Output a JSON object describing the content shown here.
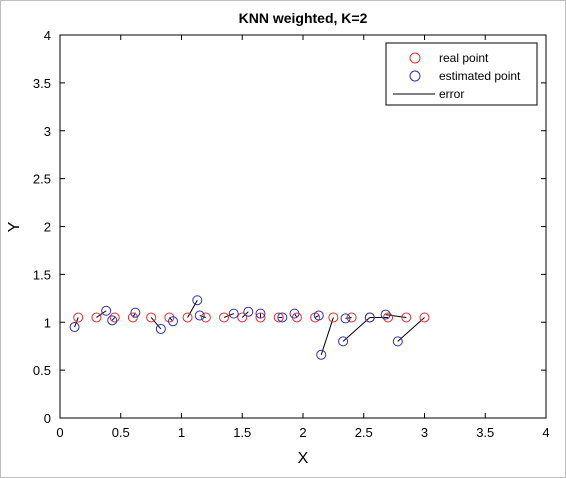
{
  "chart_data": {
    "type": "scatter",
    "title": "KNN weighted, K=2",
    "xlabel": "X",
    "ylabel": "Y",
    "xlim": [
      0,
      4
    ],
    "ylim": [
      0,
      4
    ],
    "xticks": [
      0,
      0.5,
      1,
      1.5,
      2,
      2.5,
      3,
      3.5,
      4
    ],
    "xtick_labels": [
      "0",
      "0.5",
      "1",
      "1.5",
      "2",
      "2.5",
      "3",
      "3.5",
      "4"
    ],
    "yticks": [
      0,
      0.5,
      1,
      1.5,
      2,
      2.5,
      3,
      3.5,
      4
    ],
    "ytick_labels": [
      "0",
      "0.5",
      "1",
      "1.5",
      "2",
      "2.5",
      "3",
      "3.5",
      "4"
    ],
    "grid": false,
    "legend_position": "top-right",
    "legend": [
      {
        "label": "real point",
        "marker": "circle",
        "color": "#e03030"
      },
      {
        "label": "estimated point",
        "marker": "circle",
        "color": "#3030b0"
      },
      {
        "label": "error",
        "marker": "line",
        "color": "#000000"
      }
    ],
    "series": [
      {
        "name": "real point",
        "color": "#e03030",
        "points": [
          [
            0.15,
            1.05
          ],
          [
            0.3,
            1.05
          ],
          [
            0.45,
            1.05
          ],
          [
            0.6,
            1.05
          ],
          [
            0.75,
            1.05
          ],
          [
            0.9,
            1.05
          ],
          [
            1.05,
            1.05
          ],
          [
            1.2,
            1.05
          ],
          [
            1.35,
            1.05
          ],
          [
            1.5,
            1.05
          ],
          [
            1.65,
            1.05
          ],
          [
            1.8,
            1.05
          ],
          [
            1.95,
            1.05
          ],
          [
            2.1,
            1.05
          ],
          [
            2.25,
            1.05
          ],
          [
            2.4,
            1.05
          ],
          [
            2.55,
            1.05
          ],
          [
            2.7,
            1.05
          ],
          [
            2.85,
            1.05
          ],
          [
            3.0,
            1.05
          ]
        ]
      },
      {
        "name": "estimated point",
        "color": "#3030b0",
        "points": [
          [
            0.12,
            0.95
          ],
          [
            0.38,
            1.12
          ],
          [
            0.43,
            1.02
          ],
          [
            0.62,
            1.1
          ],
          [
            0.83,
            0.93
          ],
          [
            0.93,
            1.01
          ],
          [
            1.13,
            1.23
          ],
          [
            1.15,
            1.07
          ],
          [
            1.43,
            1.09
          ],
          [
            1.55,
            1.11
          ],
          [
            1.65,
            1.09
          ],
          [
            1.83,
            1.05
          ],
          [
            1.93,
            1.09
          ],
          [
            2.13,
            1.07
          ],
          [
            2.15,
            0.66
          ],
          [
            2.35,
            1.04
          ],
          [
            2.33,
            0.8
          ],
          [
            2.55,
            1.05
          ],
          [
            2.68,
            1.08
          ],
          [
            2.78,
            0.8
          ]
        ]
      }
    ],
    "error_links": [
      [
        0,
        0
      ],
      [
        1,
        1
      ],
      [
        2,
        2
      ],
      [
        3,
        3
      ],
      [
        4,
        4
      ],
      [
        5,
        5
      ],
      [
        6,
        6
      ],
      [
        7,
        7
      ],
      [
        8,
        8
      ],
      [
        9,
        9
      ],
      [
        10,
        10
      ],
      [
        11,
        11
      ],
      [
        12,
        12
      ],
      [
        13,
        13
      ],
      [
        14,
        14
      ],
      [
        15,
        15
      ],
      [
        16,
        16
      ],
      [
        17,
        17
      ],
      [
        18,
        18
      ],
      [
        19,
        19
      ]
    ]
  }
}
